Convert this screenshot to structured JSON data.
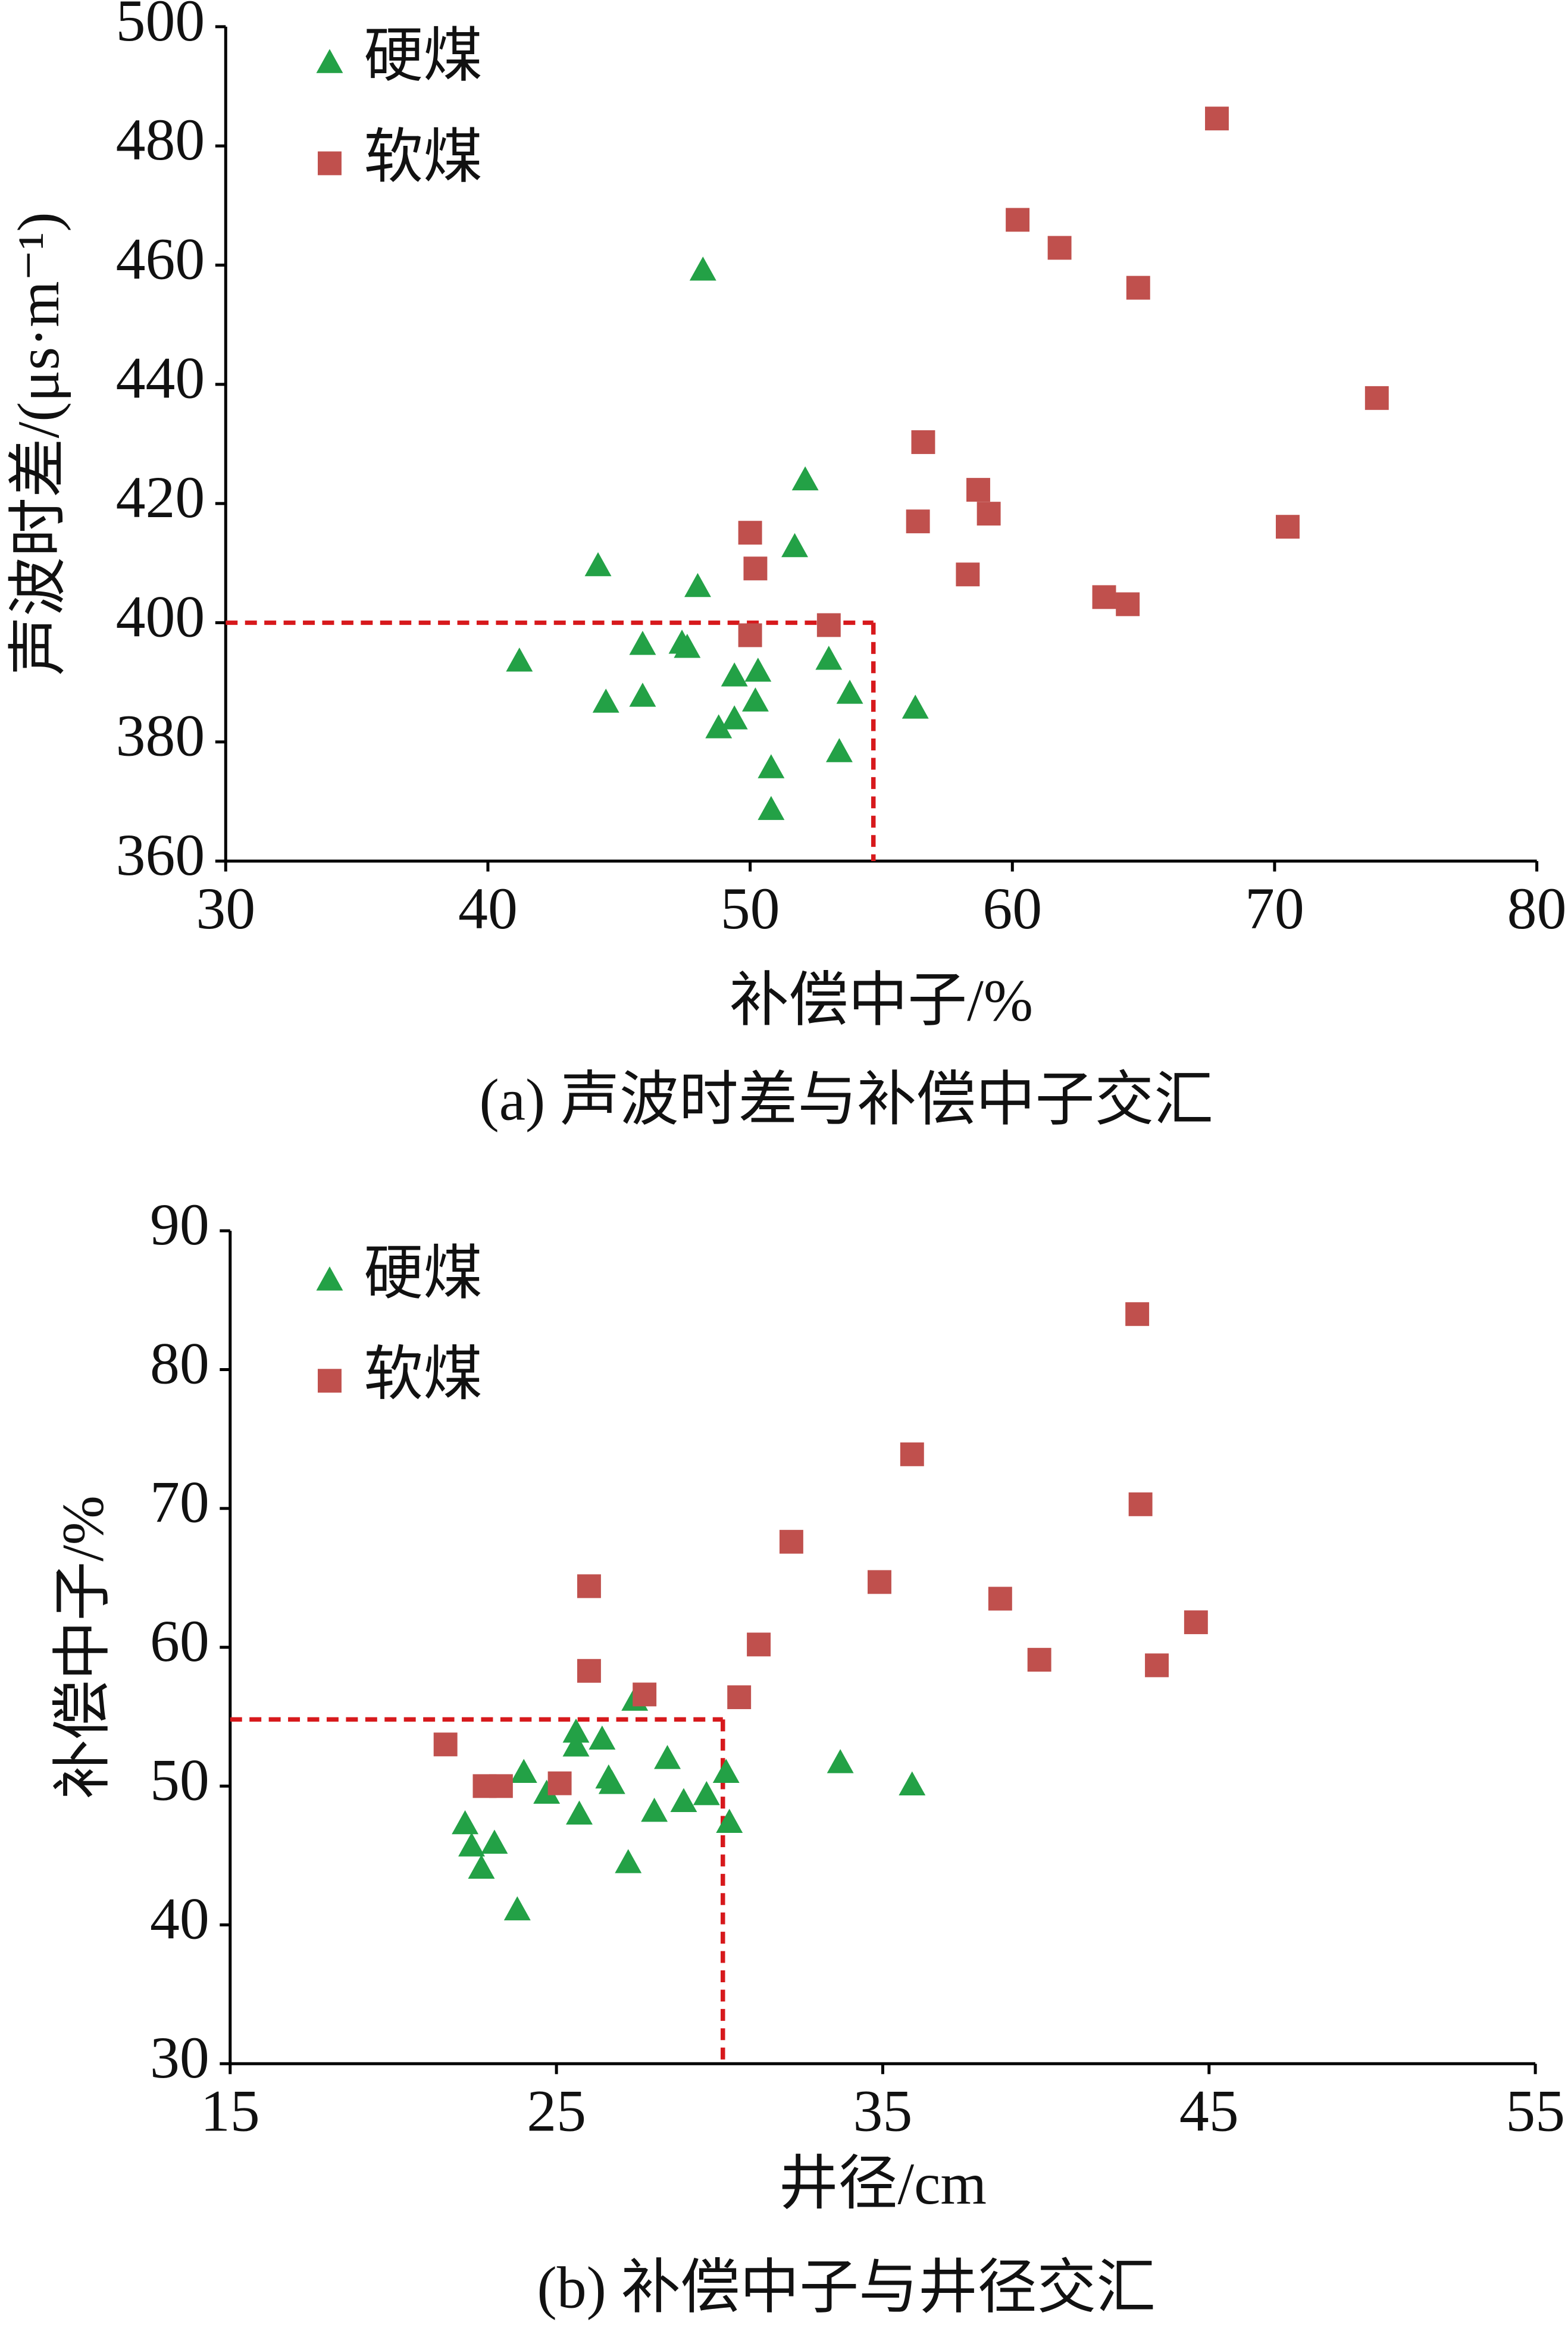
{
  "chart_data": [
    {
      "type": "scatter",
      "caption": "(a)  声波时差与补偿中子交汇",
      "x_label": "补偿中子/%",
      "y_label": "声波时差/(μs·m⁻¹)",
      "xlim": [
        30,
        80
      ],
      "xticks": [
        30,
        40,
        50,
        60,
        70,
        80
      ],
      "ylim": [
        360,
        500
      ],
      "yticks": [
        360,
        380,
        400,
        420,
        440,
        460,
        480,
        500
      ],
      "reference_lines": {
        "x": 54.7,
        "y": 400,
        "color": "#d7191c"
      },
      "series": [
        {
          "name": "硬煤",
          "color": "#23a146",
          "marker": "triangle",
          "x": [
            41.2,
            44.2,
            44.5,
            45.9,
            45.9,
            47.4,
            47.6,
            48.0,
            48.2,
            48.8,
            49.4,
            49.4,
            50.2,
            50.3,
            50.8,
            50.8,
            51.7,
            52.1,
            53.0,
            53.4,
            53.8,
            56.3
          ],
          "values": [
            393.6,
            409.6,
            386.7,
            396.4,
            387.7,
            396.6,
            395.9,
            406.1,
            459.2,
            382.4,
            383.9,
            391.1,
            386.9,
            391.9,
            375.7,
            368.7,
            412.8,
            424.0,
            393.9,
            378.4,
            388.2,
            385.7
          ]
        },
        {
          "name": "软煤",
          "color": "#c0504d",
          "marker": "square",
          "x": [
            50.0,
            50.0,
            50.2,
            53.0,
            56.4,
            56.6,
            58.3,
            58.7,
            59.1,
            60.2,
            61.8,
            63.5,
            64.4,
            64.8,
            67.8,
            70.5,
            73.9
          ],
          "values": [
            415.1,
            397.9,
            409.1,
            399.6,
            417.0,
            430.3,
            408.1,
            422.3,
            418.3,
            467.6,
            462.9,
            404.3,
            403.1,
            456.2,
            484.6,
            416.1,
            437.7
          ]
        }
      ]
    },
    {
      "type": "scatter",
      "caption": "(b)  补偿中子与井径交汇",
      "x_label": "井径/cm",
      "y_label": "补偿中子/%",
      "xlim": [
        15,
        55
      ],
      "xticks": [
        15,
        25,
        35,
        45,
        55
      ],
      "ylim": [
        30,
        90
      ],
      "yticks": [
        30,
        40,
        50,
        60,
        70,
        80,
        90
      ],
      "reference_lines": {
        "x": 30.1,
        "y": 54.8,
        "color": "#d7191c"
      },
      "series": [
        {
          "name": "硬煤",
          "color": "#23a146",
          "marker": "triangle",
          "x": [
            22.2,
            22.4,
            22.7,
            23.1,
            23.8,
            24.0,
            24.7,
            25.6,
            25.6,
            25.7,
            26.4,
            26.6,
            26.7,
            27.2,
            27.4,
            28.0,
            28.4,
            28.9,
            29.6,
            30.2,
            30.3,
            33.7,
            35.9
          ],
          "values": [
            47.3,
            45.7,
            44.1,
            45.9,
            41.1,
            51.0,
            49.5,
            53.9,
            52.9,
            48.0,
            53.4,
            50.6,
            50.2,
            44.5,
            56.2,
            48.2,
            52.0,
            48.9,
            49.4,
            51.0,
            47.4,
            51.7,
            50.1
          ]
        },
        {
          "name": "软煤",
          "color": "#c0504d",
          "marker": "square",
          "x": [
            21.6,
            22.8,
            23.3,
            25.1,
            26.0,
            26.0,
            27.7,
            30.6,
            31.2,
            32.2,
            34.9,
            35.9,
            38.6,
            39.8,
            42.8,
            42.9,
            43.4,
            44.6
          ],
          "values": [
            53.0,
            50.0,
            50.0,
            50.2,
            64.4,
            58.3,
            56.6,
            56.4,
            60.2,
            67.6,
            64.7,
            73.9,
            63.5,
            59.1,
            84.0,
            70.3,
            58.7,
            61.8
          ]
        }
      ]
    }
  ]
}
